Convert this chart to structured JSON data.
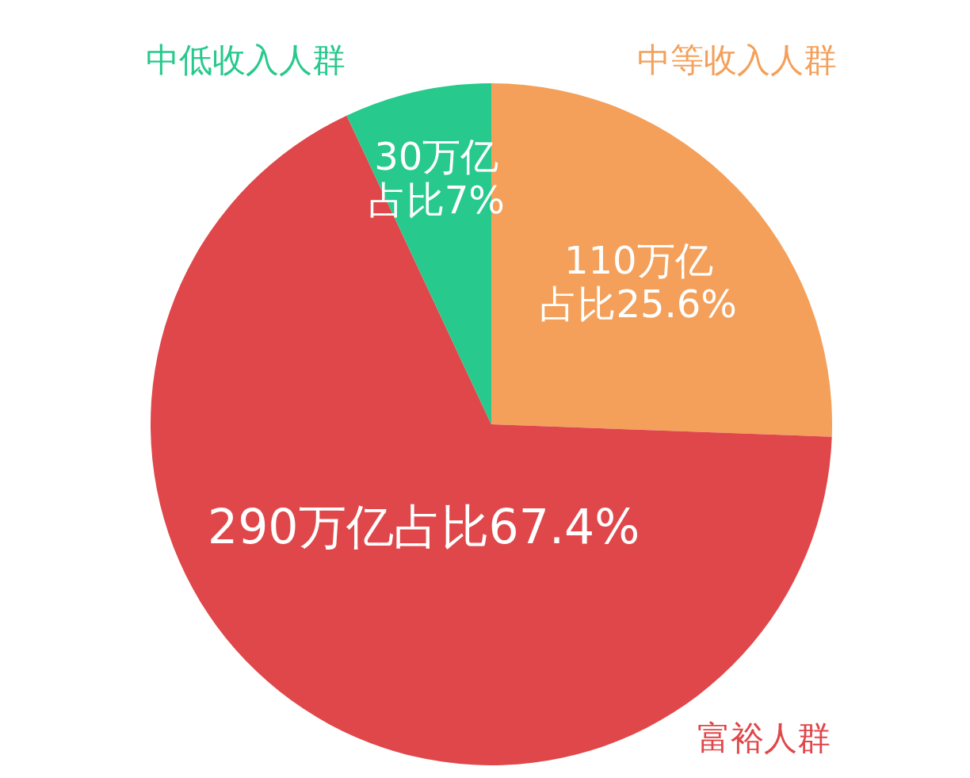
{
  "chart_data": {
    "type": "pie",
    "categories": [
      "中等收入人群",
      "富裕人群",
      "中低收入人群"
    ],
    "values": [
      110,
      290,
      30
    ],
    "colors": [
      "#f4a05a",
      "#e0474a",
      "#27c98c"
    ],
    "value_labels": [
      "110万亿占比25.6%",
      "290万亿占比67.4%",
      "30万亿占比7%"
    ]
  }
}
